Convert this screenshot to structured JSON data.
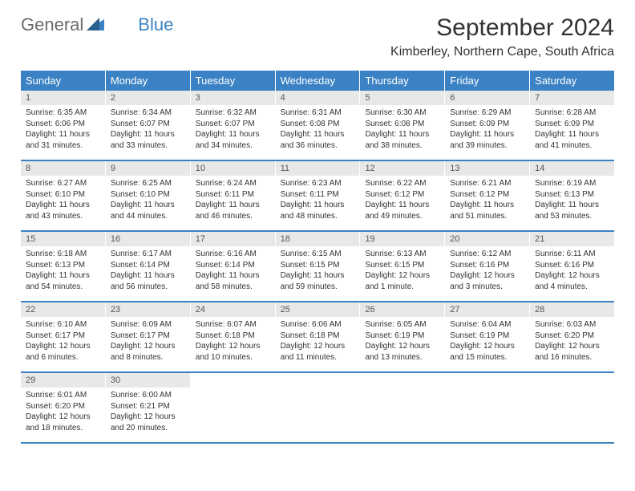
{
  "brand": {
    "word1": "General",
    "word2": "Blue"
  },
  "title": "September 2024",
  "location": "Kimberley, Northern Cape, South Africa",
  "colors": {
    "header_bg": "#3b82c4",
    "header_text": "#ffffff",
    "daynum_bg": "#e8e8e8",
    "text": "#333333",
    "row_border": "#3b82c4"
  },
  "day_names": [
    "Sunday",
    "Monday",
    "Tuesday",
    "Wednesday",
    "Thursday",
    "Friday",
    "Saturday"
  ],
  "weeks": [
    [
      {
        "n": "1",
        "sr": "Sunrise: 6:35 AM",
        "ss": "Sunset: 6:06 PM",
        "dl": "Daylight: 11 hours and 31 minutes."
      },
      {
        "n": "2",
        "sr": "Sunrise: 6:34 AM",
        "ss": "Sunset: 6:07 PM",
        "dl": "Daylight: 11 hours and 33 minutes."
      },
      {
        "n": "3",
        "sr": "Sunrise: 6:32 AM",
        "ss": "Sunset: 6:07 PM",
        "dl": "Daylight: 11 hours and 34 minutes."
      },
      {
        "n": "4",
        "sr": "Sunrise: 6:31 AM",
        "ss": "Sunset: 6:08 PM",
        "dl": "Daylight: 11 hours and 36 minutes."
      },
      {
        "n": "5",
        "sr": "Sunrise: 6:30 AM",
        "ss": "Sunset: 6:08 PM",
        "dl": "Daylight: 11 hours and 38 minutes."
      },
      {
        "n": "6",
        "sr": "Sunrise: 6:29 AM",
        "ss": "Sunset: 6:09 PM",
        "dl": "Daylight: 11 hours and 39 minutes."
      },
      {
        "n": "7",
        "sr": "Sunrise: 6:28 AM",
        "ss": "Sunset: 6:09 PM",
        "dl": "Daylight: 11 hours and 41 minutes."
      }
    ],
    [
      {
        "n": "8",
        "sr": "Sunrise: 6:27 AM",
        "ss": "Sunset: 6:10 PM",
        "dl": "Daylight: 11 hours and 43 minutes."
      },
      {
        "n": "9",
        "sr": "Sunrise: 6:25 AM",
        "ss": "Sunset: 6:10 PM",
        "dl": "Daylight: 11 hours and 44 minutes."
      },
      {
        "n": "10",
        "sr": "Sunrise: 6:24 AM",
        "ss": "Sunset: 6:11 PM",
        "dl": "Daylight: 11 hours and 46 minutes."
      },
      {
        "n": "11",
        "sr": "Sunrise: 6:23 AM",
        "ss": "Sunset: 6:11 PM",
        "dl": "Daylight: 11 hours and 48 minutes."
      },
      {
        "n": "12",
        "sr": "Sunrise: 6:22 AM",
        "ss": "Sunset: 6:12 PM",
        "dl": "Daylight: 11 hours and 49 minutes."
      },
      {
        "n": "13",
        "sr": "Sunrise: 6:21 AM",
        "ss": "Sunset: 6:12 PM",
        "dl": "Daylight: 11 hours and 51 minutes."
      },
      {
        "n": "14",
        "sr": "Sunrise: 6:19 AM",
        "ss": "Sunset: 6:13 PM",
        "dl": "Daylight: 11 hours and 53 minutes."
      }
    ],
    [
      {
        "n": "15",
        "sr": "Sunrise: 6:18 AM",
        "ss": "Sunset: 6:13 PM",
        "dl": "Daylight: 11 hours and 54 minutes."
      },
      {
        "n": "16",
        "sr": "Sunrise: 6:17 AM",
        "ss": "Sunset: 6:14 PM",
        "dl": "Daylight: 11 hours and 56 minutes."
      },
      {
        "n": "17",
        "sr": "Sunrise: 6:16 AM",
        "ss": "Sunset: 6:14 PM",
        "dl": "Daylight: 11 hours and 58 minutes."
      },
      {
        "n": "18",
        "sr": "Sunrise: 6:15 AM",
        "ss": "Sunset: 6:15 PM",
        "dl": "Daylight: 11 hours and 59 minutes."
      },
      {
        "n": "19",
        "sr": "Sunrise: 6:13 AM",
        "ss": "Sunset: 6:15 PM",
        "dl": "Daylight: 12 hours and 1 minute."
      },
      {
        "n": "20",
        "sr": "Sunrise: 6:12 AM",
        "ss": "Sunset: 6:16 PM",
        "dl": "Daylight: 12 hours and 3 minutes."
      },
      {
        "n": "21",
        "sr": "Sunrise: 6:11 AM",
        "ss": "Sunset: 6:16 PM",
        "dl": "Daylight: 12 hours and 4 minutes."
      }
    ],
    [
      {
        "n": "22",
        "sr": "Sunrise: 6:10 AM",
        "ss": "Sunset: 6:17 PM",
        "dl": "Daylight: 12 hours and 6 minutes."
      },
      {
        "n": "23",
        "sr": "Sunrise: 6:09 AM",
        "ss": "Sunset: 6:17 PM",
        "dl": "Daylight: 12 hours and 8 minutes."
      },
      {
        "n": "24",
        "sr": "Sunrise: 6:07 AM",
        "ss": "Sunset: 6:18 PM",
        "dl": "Daylight: 12 hours and 10 minutes."
      },
      {
        "n": "25",
        "sr": "Sunrise: 6:06 AM",
        "ss": "Sunset: 6:18 PM",
        "dl": "Daylight: 12 hours and 11 minutes."
      },
      {
        "n": "26",
        "sr": "Sunrise: 6:05 AM",
        "ss": "Sunset: 6:19 PM",
        "dl": "Daylight: 12 hours and 13 minutes."
      },
      {
        "n": "27",
        "sr": "Sunrise: 6:04 AM",
        "ss": "Sunset: 6:19 PM",
        "dl": "Daylight: 12 hours and 15 minutes."
      },
      {
        "n": "28",
        "sr": "Sunrise: 6:03 AM",
        "ss": "Sunset: 6:20 PM",
        "dl": "Daylight: 12 hours and 16 minutes."
      }
    ],
    [
      {
        "n": "29",
        "sr": "Sunrise: 6:01 AM",
        "ss": "Sunset: 6:20 PM",
        "dl": "Daylight: 12 hours and 18 minutes."
      },
      {
        "n": "30",
        "sr": "Sunrise: 6:00 AM",
        "ss": "Sunset: 6:21 PM",
        "dl": "Daylight: 12 hours and 20 minutes."
      },
      {
        "empty": true
      },
      {
        "empty": true
      },
      {
        "empty": true
      },
      {
        "empty": true
      },
      {
        "empty": true
      }
    ]
  ]
}
